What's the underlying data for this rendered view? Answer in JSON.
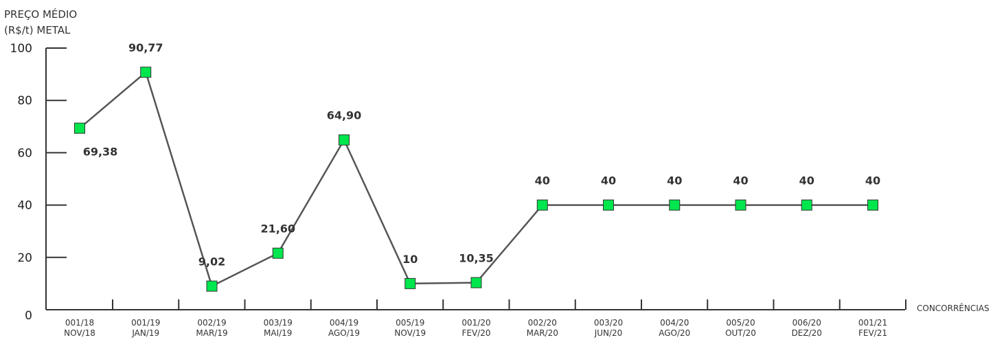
{
  "chart_data": {
    "type": "line",
    "ylabel_lines": [
      "PREÇO MÉDIO",
      "(R$/t) METAL"
    ],
    "xlabel": "CONCORRÊNCIAS",
    "ylim": [
      0,
      100
    ],
    "yticks": [
      0,
      20,
      40,
      60,
      80,
      100
    ],
    "ytick_labels": [
      "0",
      "20",
      "40",
      "60",
      "80",
      "100"
    ],
    "categories": [
      [
        "001/18",
        "NOV/18"
      ],
      [
        "001/19",
        "JAN/19"
      ],
      [
        "002/19",
        "MAR/19"
      ],
      [
        "003/19",
        "MAI/19"
      ],
      [
        "004/19",
        "AGO/19"
      ],
      [
        "005/19",
        "NOV/19"
      ],
      [
        "001/20",
        "FEV/20"
      ],
      [
        "002/20",
        "MAR/20"
      ],
      [
        "003/20",
        "JUN/20"
      ],
      [
        "004/20",
        "AGO/20"
      ],
      [
        "005/20",
        "OUT/20"
      ],
      [
        "006/20",
        "DEZ/20"
      ],
      [
        "001/21",
        "FEV/21"
      ]
    ],
    "series": [
      {
        "values": [
          69.38,
          90.77,
          9.02,
          21.6,
          64.9,
          10,
          10.35,
          40,
          40,
          40,
          40,
          40,
          40
        ],
        "labels": [
          "69,38",
          "90,77",
          "9,02",
          "21,60",
          "64,90",
          "10",
          "10,35",
          "40",
          "40",
          "40",
          "40",
          "40",
          "40"
        ],
        "label_position": [
          "below",
          "above",
          "above",
          "above",
          "above",
          "above",
          "above",
          "above",
          "above",
          "above",
          "above",
          "above",
          "above"
        ]
      }
    ],
    "line_color": "#555555",
    "marker_color": "#00e64d",
    "marker_stroke": "#333333",
    "axis_color": "#333333",
    "grid": false
  }
}
